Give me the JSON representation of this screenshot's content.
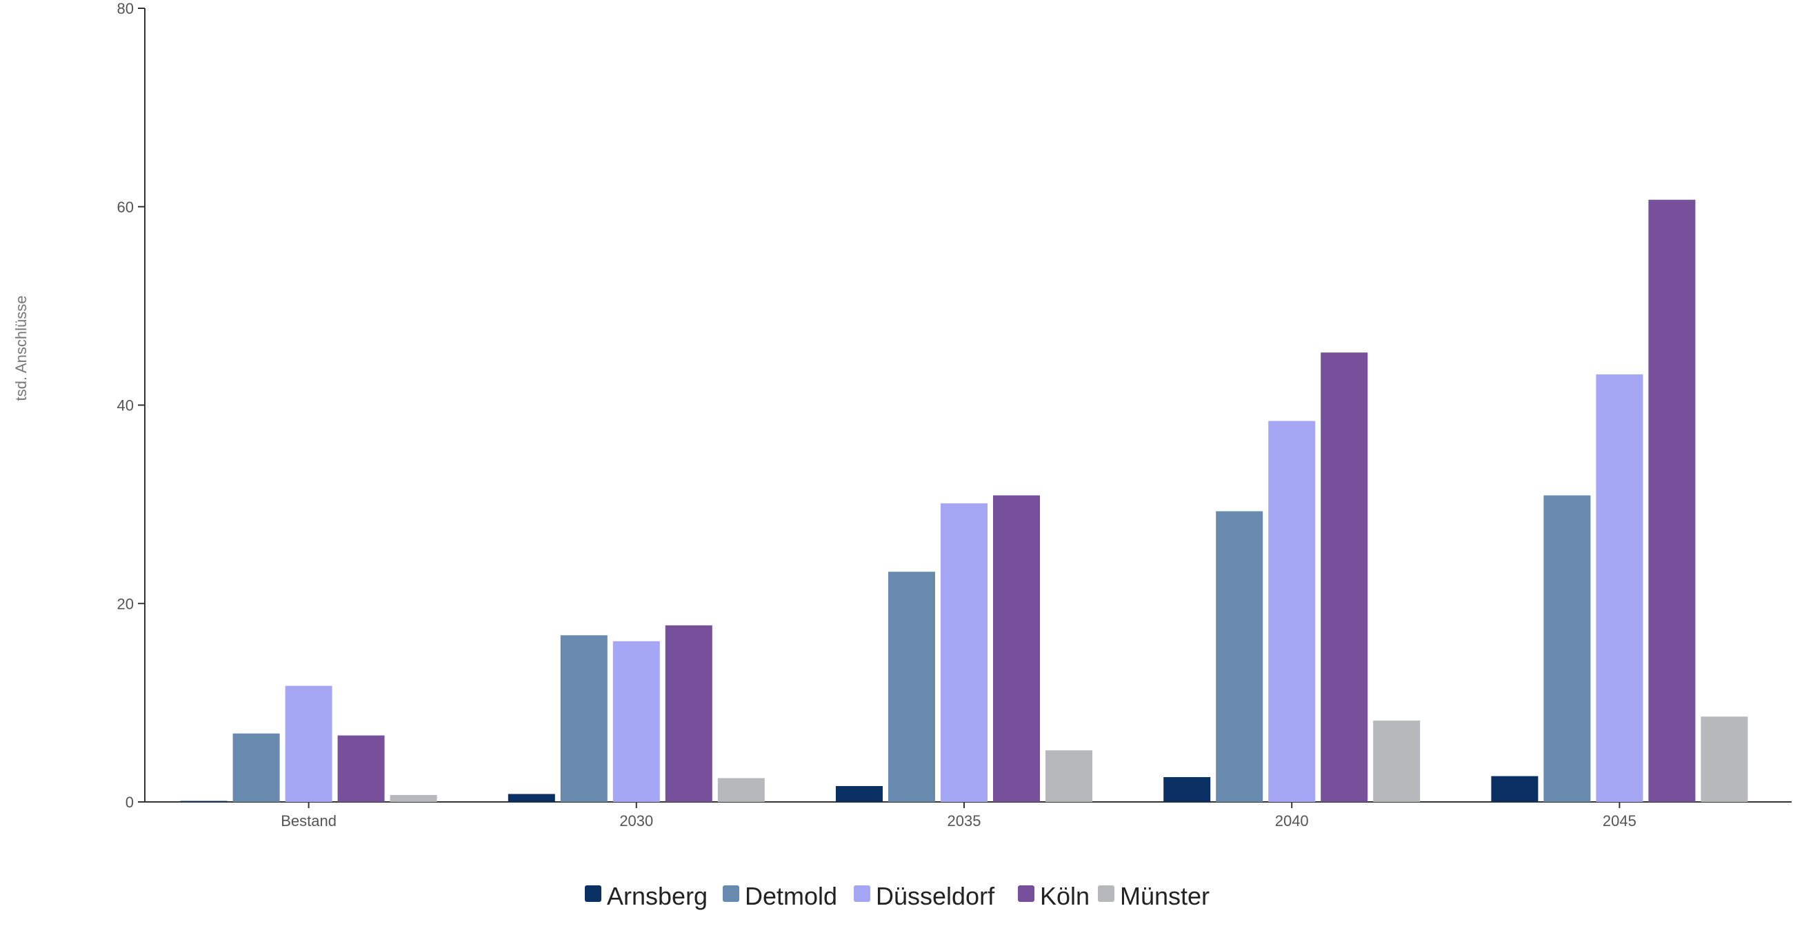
{
  "chart_data": {
    "type": "bar",
    "title": "",
    "xlabel": "",
    "ylabel": "tsd. Anschlüsse",
    "categories": [
      "Bestand",
      "2030",
      "2035",
      "2040",
      "2045"
    ],
    "ylim": [
      0,
      80
    ],
    "yticks": [
      0,
      20,
      40,
      60,
      80
    ],
    "grid": false,
    "legend_position": "bottom",
    "series": [
      {
        "name": "Arnsberg",
        "color": "#0a2f63",
        "values": [
          0.1,
          0.8,
          1.6,
          2.5,
          2.6
        ]
      },
      {
        "name": "Detmold",
        "color": "#678aae",
        "values": [
          6.9,
          16.8,
          23.2,
          29.3,
          30.9
        ]
      },
      {
        "name": "Düsseldorf",
        "color": "#a5a7f5",
        "values": [
          11.7,
          16.2,
          30.1,
          38.4,
          43.1
        ]
      },
      {
        "name": "Köln",
        "color": "#76509b",
        "values": [
          6.7,
          17.8,
          30.9,
          45.3,
          60.7
        ]
      },
      {
        "name": "Münster",
        "color": "#b6b8bb",
        "values": [
          0.7,
          2.4,
          5.2,
          8.2,
          8.6
        ]
      }
    ]
  }
}
